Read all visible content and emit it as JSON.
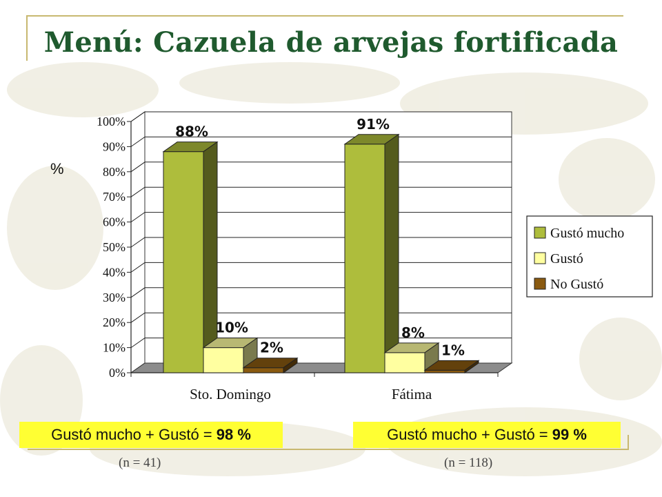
{
  "slide": {
    "title": "Menú: Cazuela de arvejas fortificada",
    "y_unit_label": "%",
    "summaries": [
      {
        "text": "Gustó mucho + Gustó = ",
        "value": "98 %",
        "n": "(n = 41)"
      },
      {
        "text": "Gustó mucho + Gustó = ",
        "value": "99 %",
        "n": "(n = 118)"
      }
    ]
  },
  "colors": {
    "title": "#1f5a2e",
    "gusto_mucho": "#aebd3c",
    "gusto": "#ffffa0",
    "no_gusto": "#8a5a10",
    "summary_bg": "#ffff33",
    "frame": "#c8b870"
  },
  "chart_data": {
    "type": "bar",
    "categories": [
      "Sto. Domingo",
      "Fátima"
    ],
    "series": [
      {
        "name": "Gustó mucho",
        "values": [
          88,
          91
        ],
        "labels": [
          "88%",
          "91%"
        ]
      },
      {
        "name": "Gustó",
        "values": [
          10,
          8
        ],
        "labels": [
          "10%",
          "8%"
        ]
      },
      {
        "name": "No Gustó",
        "values": [
          2,
          1
        ],
        "labels": [
          "2%",
          "1%"
        ]
      }
    ],
    "yticks": [
      "0%",
      "10%",
      "20%",
      "30%",
      "40%",
      "50%",
      "60%",
      "70%",
      "80%",
      "90%",
      "100%"
    ],
    "ylim": [
      0,
      100
    ],
    "legend_position": "right",
    "grid": true,
    "three_d": true
  }
}
